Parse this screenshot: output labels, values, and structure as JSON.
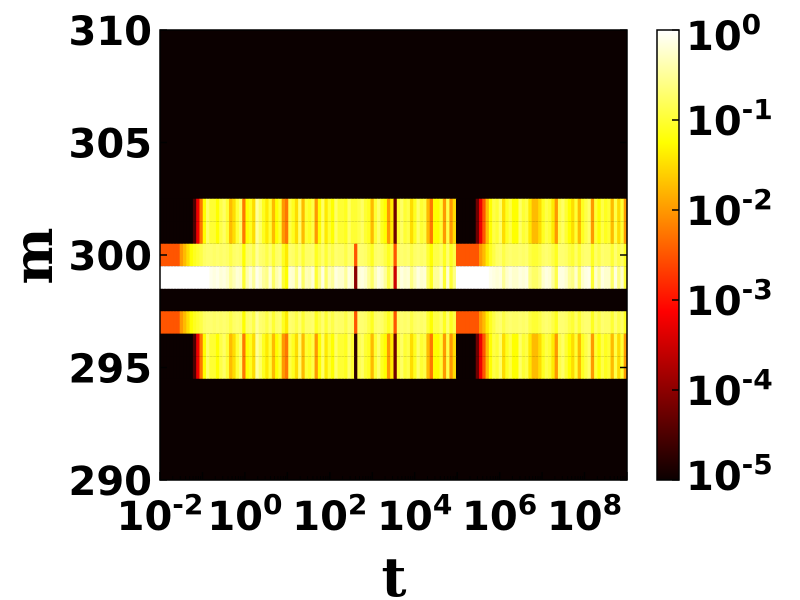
{
  "chart_data": {
    "type": "heatmap",
    "title": "",
    "xlabel": "t",
    "ylabel": "m",
    "x_scale": "log",
    "xlim": [
      0.01,
      1000000000
    ],
    "ylim": [
      290,
      310
    ],
    "x_tick_labels": [
      {
        "value": 0.01,
        "base": "10",
        "exp": "-2"
      },
      {
        "value": 1,
        "base": "10",
        "exp": "0"
      },
      {
        "value": 100,
        "base": "10",
        "exp": "2"
      },
      {
        "value": 10000,
        "base": "10",
        "exp": "4"
      },
      {
        "value": 1000000,
        "base": "10",
        "exp": "6"
      },
      {
        "value": 100000000,
        "base": "10",
        "exp": "8"
      }
    ],
    "y_tick_labels": [
      "290",
      "295",
      "300",
      "305",
      "310"
    ],
    "y_ticks": [
      290,
      295,
      300,
      305,
      310
    ],
    "colorbar": {
      "scale": "log",
      "range": [
        1e-05,
        1
      ],
      "colormap": "hot",
      "tick_labels": [
        {
          "value": 1,
          "base": "10",
          "exp": "0"
        },
        {
          "value": 0.1,
          "base": "10",
          "exp": "-1"
        },
        {
          "value": 0.01,
          "base": "10",
          "exp": "-2"
        },
        {
          "value": 0.001,
          "base": "10",
          "exp": "-3"
        },
        {
          "value": 0.0001,
          "base": "10",
          "exp": "-4"
        },
        {
          "value": 1e-05,
          "base": "10",
          "exp": "-5"
        }
      ]
    },
    "rows": [
      {
        "m": 302,
        "intensity": [
          0,
          0,
          0,
          0,
          0,
          0,
          0,
          0,
          0,
          0,
          0.1,
          0.35,
          0.55,
          0.75,
          0.85,
          0.8,
          0.8,
          0.75,
          0.82,
          0.85,
          0.8,
          0.65,
          0.7,
          0.8,
          0.85,
          0.55,
          0.75,
          0.78,
          0.7,
          0.9,
          0.85,
          0.78,
          0.72,
          0.8,
          0.65,
          0.75,
          0.8,
          0.6,
          0.55,
          0.82,
          0.78,
          0.7,
          0.85,
          0.65,
          0.8,
          0.78,
          0.82,
          0.6,
          0.75,
          0.85,
          0.72,
          0.8,
          0.75,
          0.85,
          0.8,
          0.8,
          0.78,
          0.85,
          0.8,
          0.8,
          0.82,
          0.85,
          0.8,
          0.78,
          0.65,
          0.8,
          0.85,
          0.78,
          0.75,
          0.6,
          0.72,
          0.15,
          0.8,
          0.85,
          0.8,
          0.82,
          0.7,
          0.78,
          0.85,
          0.8,
          0.82,
          0.65,
          0.55,
          0.75,
          0.75,
          0.8,
          0.6,
          0.82,
          0.6,
          0.7,
          0,
          0,
          0,
          0,
          0,
          0,
          0.15,
          0.35,
          0.5,
          0.65,
          0.75,
          0.82,
          0.8,
          0.85,
          0.7,
          0.78,
          0.82,
          0.75,
          0.75,
          0.85,
          0.8,
          0.82,
          0.72,
          0.65,
          0.65,
          0.7,
          0.78,
          0.82,
          0.8,
          0.72,
          0.6,
          0.82,
          0.85,
          0.8,
          0.75,
          0.7,
          0.8,
          0.65,
          0.78,
          0.82,
          0.85,
          0.6,
          0.8,
          0.75,
          0.82,
          0.78,
          0.8,
          0.65,
          0.82,
          0.7,
          0.8,
          0.6
        ]
      },
      {
        "m": 301,
        "intensity": [
          0,
          0,
          0,
          0,
          0,
          0,
          0,
          0,
          0,
          0,
          0.1,
          0.35,
          0.55,
          0.75,
          0.85,
          0.8,
          0.8,
          0.75,
          0.82,
          0.85,
          0.8,
          0.65,
          0.7,
          0.8,
          0.85,
          0.55,
          0.75,
          0.78,
          0.7,
          0.9,
          0.85,
          0.78,
          0.72,
          0.8,
          0.65,
          0.75,
          0.8,
          0.6,
          0.55,
          0.82,
          0.78,
          0.7,
          0.85,
          0.65,
          0.8,
          0.78,
          0.82,
          0.6,
          0.75,
          0.85,
          0.72,
          0.8,
          0.75,
          0.85,
          0.8,
          0.8,
          0.78,
          0.85,
          0.8,
          0.8,
          0.82,
          0.85,
          0.8,
          0.78,
          0.65,
          0.8,
          0.85,
          0.78,
          0.75,
          0.6,
          0.72,
          0.15,
          0.8,
          0.85,
          0.8,
          0.82,
          0.7,
          0.78,
          0.85,
          0.8,
          0.82,
          0.65,
          0.55,
          0.75,
          0.75,
          0.8,
          0.6,
          0.82,
          0.6,
          0.7,
          0,
          0,
          0,
          0,
          0,
          0,
          0.15,
          0.35,
          0.5,
          0.65,
          0.75,
          0.82,
          0.8,
          0.85,
          0.7,
          0.78,
          0.82,
          0.75,
          0.75,
          0.85,
          0.8,
          0.82,
          0.72,
          0.65,
          0.65,
          0.7,
          0.78,
          0.82,
          0.8,
          0.72,
          0.6,
          0.82,
          0.85,
          0.8,
          0.75,
          0.7,
          0.8,
          0.65,
          0.78,
          0.82,
          0.85,
          0.6,
          0.8,
          0.75,
          0.82,
          0.78,
          0.8,
          0.65,
          0.82,
          0.7,
          0.8,
          0.6
        ]
      },
      {
        "m": 300,
        "intensity": [
          0.5,
          0.5,
          0.5,
          0.5,
          0.5,
          0.5,
          0.6,
          0.65,
          0.7,
          0.75,
          0.78,
          0.8,
          0.82,
          0.85,
          0.86,
          0.86,
          0.85,
          0.86,
          0.85,
          0.86,
          0.85,
          0.82,
          0.85,
          0.86,
          0.85,
          0.75,
          0.85,
          0.86,
          0.82,
          0.9,
          0.86,
          0.85,
          0.82,
          0.86,
          0.8,
          0.85,
          0.86,
          0.78,
          0.72,
          0.86,
          0.85,
          0.82,
          0.86,
          0.8,
          0.85,
          0.85,
          0.86,
          0.78,
          0.82,
          0.86,
          0.8,
          0.85,
          0.82,
          0.86,
          0.85,
          0.85,
          0.82,
          0.86,
          0.85,
          0.5,
          0.86,
          0.86,
          0.85,
          0.82,
          0.78,
          0.85,
          0.86,
          0.85,
          0.82,
          0.78,
          0.82,
          0.5,
          0.85,
          0.86,
          0.85,
          0.86,
          0.82,
          0.85,
          0.86,
          0.85,
          0.86,
          0.8,
          0.75,
          0.82,
          0.82,
          0.85,
          0.78,
          0.86,
          0.78,
          0.82,
          0.5,
          0.5,
          0.5,
          0.5,
          0.5,
          0.5,
          0.5,
          0.6,
          0.65,
          0.72,
          0.78,
          0.82,
          0.85,
          0.86,
          0.82,
          0.85,
          0.86,
          0.85,
          0.85,
          0.86,
          0.85,
          0.86,
          0.82,
          0.8,
          0.8,
          0.82,
          0.85,
          0.86,
          0.85,
          0.82,
          0.78,
          0.86,
          0.86,
          0.85,
          0.82,
          0.8,
          0.85,
          0.8,
          0.85,
          0.86,
          0.86,
          0.78,
          0.85,
          0.82,
          0.86,
          0.85,
          0.85,
          0.8,
          0.86,
          0.82,
          0.85,
          0.78
        ]
      },
      {
        "m": 299,
        "intensity": [
          1,
          1,
          1,
          1,
          1,
          1,
          1,
          1,
          1,
          1,
          1,
          1,
          1,
          1,
          1,
          0.98,
          0.97,
          0.98,
          0.96,
          0.97,
          0.95,
          0.9,
          0.93,
          0.96,
          0.95,
          0.8,
          0.92,
          0.96,
          0.9,
          0.98,
          0.95,
          0.9,
          0.88,
          0.96,
          0.85,
          0.92,
          0.95,
          0.8,
          0.75,
          0.96,
          0.95,
          0.88,
          0.97,
          0.85,
          0.93,
          0.92,
          0.96,
          0.8,
          0.88,
          0.97,
          0.85,
          0.93,
          0.9,
          0.97,
          0.95,
          0.95,
          0.9,
          0.97,
          0.95,
          0.2,
          0.96,
          0.97,
          0.95,
          0.9,
          0.85,
          0.93,
          0.97,
          0.95,
          0.9,
          0.82,
          0.88,
          0.3,
          0.93,
          0.97,
          0.95,
          0.96,
          0.88,
          0.93,
          0.97,
          0.95,
          0.96,
          0.85,
          0.78,
          0.9,
          0.9,
          0.95,
          0.8,
          0.96,
          0.8,
          0.88,
          1,
          1,
          1,
          1,
          1,
          1,
          1,
          1,
          1,
          1,
          0.98,
          0.97,
          0.96,
          0.97,
          0.9,
          0.95,
          0.97,
          0.95,
          0.95,
          0.97,
          0.96,
          0.97,
          0.88,
          0.85,
          0.85,
          0.88,
          0.95,
          0.97,
          0.96,
          0.9,
          0.82,
          0.97,
          0.97,
          0.95,
          0.9,
          0.88,
          0.95,
          0.85,
          0.95,
          0.97,
          0.98,
          0.8,
          0.95,
          0.9,
          0.97,
          0.95,
          0.95,
          0.85,
          0.97,
          0.88,
          0.95,
          0.8
        ]
      },
      {
        "m": 298,
        "intensity": [
          0
        ]
      },
      {
        "m": 297,
        "intensity": [
          0.5,
          0.5,
          0.5,
          0.5,
          0.5,
          0.5,
          0.6,
          0.65,
          0.7,
          0.75,
          0.78,
          0.8,
          0.82,
          0.85,
          0.86,
          0.86,
          0.85,
          0.86,
          0.85,
          0.86,
          0.85,
          0.82,
          0.85,
          0.86,
          0.85,
          0.75,
          0.85,
          0.86,
          0.82,
          0.9,
          0.86,
          0.85,
          0.82,
          0.86,
          0.8,
          0.85,
          0.86,
          0.78,
          0.72,
          0.86,
          0.85,
          0.82,
          0.86,
          0.8,
          0.85,
          0.85,
          0.86,
          0.78,
          0.82,
          0.86,
          0.8,
          0.85,
          0.82,
          0.86,
          0.85,
          0.85,
          0.82,
          0.86,
          0.85,
          0.5,
          0.86,
          0.86,
          0.85,
          0.82,
          0.78,
          0.85,
          0.86,
          0.85,
          0.82,
          0.78,
          0.82,
          0.5,
          0.85,
          0.86,
          0.85,
          0.86,
          0.82,
          0.85,
          0.86,
          0.85,
          0.86,
          0.8,
          0.75,
          0.82,
          0.82,
          0.85,
          0.78,
          0.86,
          0.78,
          0.82,
          0.5,
          0.5,
          0.5,
          0.5,
          0.5,
          0.5,
          0.5,
          0.6,
          0.65,
          0.72,
          0.78,
          0.82,
          0.85,
          0.86,
          0.82,
          0.85,
          0.86,
          0.85,
          0.85,
          0.86,
          0.85,
          0.86,
          0.82,
          0.8,
          0.8,
          0.82,
          0.85,
          0.86,
          0.85,
          0.82,
          0.78,
          0.86,
          0.86,
          0.85,
          0.82,
          0.8,
          0.85,
          0.8,
          0.85,
          0.86,
          0.86,
          0.78,
          0.85,
          0.82,
          0.86,
          0.85,
          0.85,
          0.8,
          0.86,
          0.82,
          0.85,
          0.78
        ]
      },
      {
        "m": 296,
        "intensity": [
          0,
          0,
          0,
          0,
          0,
          0,
          0,
          0,
          0,
          0,
          0.1,
          0.35,
          0.55,
          0.75,
          0.85,
          0.8,
          0.8,
          0.75,
          0.82,
          0.85,
          0.8,
          0.65,
          0.7,
          0.8,
          0.85,
          0.55,
          0.75,
          0.78,
          0.7,
          0.9,
          0.85,
          0.78,
          0.72,
          0.8,
          0.65,
          0.75,
          0.8,
          0.6,
          0.55,
          0.82,
          0.78,
          0.7,
          0.85,
          0.65,
          0.8,
          0.78,
          0.82,
          0.6,
          0.75,
          0.85,
          0.72,
          0.8,
          0.75,
          0.85,
          0.8,
          0.8,
          0.78,
          0.85,
          0.8,
          0.05,
          0.82,
          0.85,
          0.8,
          0.78,
          0.65,
          0.8,
          0.85,
          0.78,
          0.75,
          0.6,
          0.72,
          0.15,
          0.8,
          0.85,
          0.8,
          0.82,
          0.7,
          0.78,
          0.85,
          0.8,
          0.82,
          0.65,
          0.55,
          0.75,
          0.75,
          0.8,
          0.6,
          0.82,
          0.6,
          0.7,
          0,
          0,
          0,
          0,
          0,
          0,
          0.15,
          0.35,
          0.5,
          0.65,
          0.75,
          0.82,
          0.8,
          0.85,
          0.7,
          0.78,
          0.82,
          0.75,
          0.75,
          0.85,
          0.8,
          0.82,
          0.72,
          0.65,
          0.65,
          0.7,
          0.78,
          0.82,
          0.8,
          0.72,
          0.6,
          0.82,
          0.85,
          0.8,
          0.75,
          0.7,
          0.8,
          0.65,
          0.78,
          0.82,
          0.85,
          0.6,
          0.8,
          0.75,
          0.82,
          0.78,
          0.8,
          0.65,
          0.82,
          0.7,
          0.8,
          0.6
        ]
      },
      {
        "m": 295,
        "intensity": [
          0,
          0,
          0,
          0,
          0,
          0,
          0,
          0,
          0,
          0,
          0.1,
          0.35,
          0.55,
          0.75,
          0.85,
          0.8,
          0.8,
          0.75,
          0.82,
          0.85,
          0.8,
          0.65,
          0.7,
          0.8,
          0.85,
          0.55,
          0.75,
          0.78,
          0.7,
          0.9,
          0.85,
          0.78,
          0.72,
          0.8,
          0.65,
          0.75,
          0.8,
          0.6,
          0.55,
          0.82,
          0.78,
          0.7,
          0.85,
          0.65,
          0.8,
          0.78,
          0.82,
          0.6,
          0.75,
          0.85,
          0.72,
          0.8,
          0.75,
          0.85,
          0.8,
          0.8,
          0.78,
          0.85,
          0.8,
          0.05,
          0.82,
          0.85,
          0.8,
          0.78,
          0.65,
          0.8,
          0.85,
          0.78,
          0.75,
          0.6,
          0.72,
          0.15,
          0.8,
          0.85,
          0.8,
          0.82,
          0.7,
          0.78,
          0.85,
          0.8,
          0.82,
          0.65,
          0.55,
          0.75,
          0.75,
          0.8,
          0.6,
          0.82,
          0.6,
          0.7,
          0,
          0,
          0,
          0,
          0,
          0,
          0.15,
          0.35,
          0.5,
          0.65,
          0.75,
          0.82,
          0.8,
          0.85,
          0.7,
          0.78,
          0.82,
          0.75,
          0.75,
          0.85,
          0.8,
          0.82,
          0.72,
          0.65,
          0.65,
          0.7,
          0.78,
          0.82,
          0.8,
          0.72,
          0.6,
          0.82,
          0.85,
          0.8,
          0.75,
          0.7,
          0.8,
          0.65,
          0.78,
          0.82,
          0.85,
          0.6,
          0.8,
          0.75,
          0.82,
          0.78,
          0.8,
          0.65,
          0.82,
          0.7,
          0.8,
          0.6
        ]
      }
    ],
    "notes_bands_log10_t": [
      -2,
      9
    ]
  }
}
